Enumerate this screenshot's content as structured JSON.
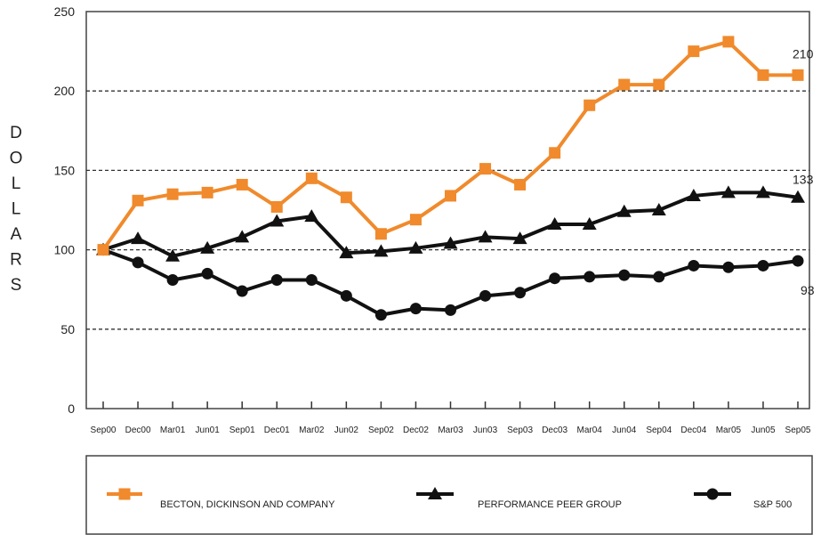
{
  "chart_data": {
    "type": "line",
    "title": "",
    "xlabel": "",
    "ylabel": "DOLLARS",
    "ylim": [
      0,
      250
    ],
    "yticks": [
      0,
      50,
      100,
      150,
      200,
      250
    ],
    "grid_lines": [
      50,
      100,
      150,
      200
    ],
    "legend_position": "bottom",
    "categories": [
      "Sep00",
      "Dec00",
      "Mar01",
      "Jun01",
      "Sep01",
      "Dec01",
      "Mar02",
      "Jun02",
      "Sep02",
      "Dec02",
      "Mar03",
      "Jun03",
      "Sep03",
      "Dec03",
      "Mar04",
      "Jun04",
      "Sep04",
      "Dec04",
      "Mar05",
      "Jun05",
      "Sep05"
    ],
    "series": [
      {
        "name": "BECTON, DICKINSON AND COMPANY",
        "marker": "square",
        "color": "#f08a2c",
        "end_label": "210",
        "values": [
          100,
          131,
          135,
          136,
          141,
          127,
          145,
          133,
          110,
          119,
          134,
          151,
          141,
          161,
          191,
          204,
          204,
          225,
          231,
          210,
          210
        ]
      },
      {
        "name": "PERFORMANCE PEER GROUP",
        "marker": "triangle",
        "color": "#111111",
        "end_label": "133",
        "values": [
          100,
          107,
          96,
          101,
          108,
          118,
          121,
          98,
          99,
          101,
          104,
          108,
          107,
          116,
          116,
          124,
          125,
          134,
          136,
          136,
          133
        ]
      },
      {
        "name": "S&P 500",
        "marker": "circle",
        "color": "#111111",
        "end_label": "93",
        "values": [
          100,
          92,
          81,
          85,
          74,
          81,
          81,
          71,
          59,
          63,
          62,
          71,
          73,
          82,
          83,
          84,
          83,
          90,
          89,
          90,
          93
        ]
      }
    ]
  }
}
